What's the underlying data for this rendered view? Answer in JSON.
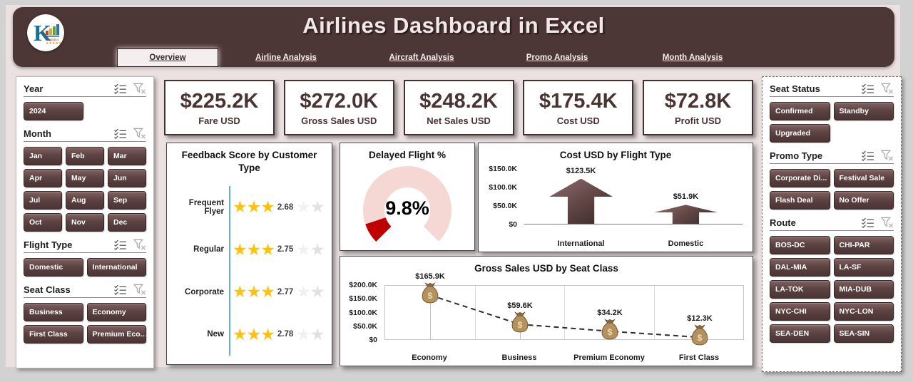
{
  "window": {
    "title": "Airlines Dashboard in Excel"
  },
  "tabs": [
    {
      "label": "Overview",
      "active": true
    },
    {
      "label": "Airline Analysis",
      "active": false
    },
    {
      "label": "Aircraft Analysis",
      "active": false
    },
    {
      "label": "Promo Analysis",
      "active": false
    },
    {
      "label": "Month Analysis",
      "active": false
    }
  ],
  "kpis": [
    {
      "value": "$225.2K",
      "label": "Fare USD"
    },
    {
      "value": "$272.0K",
      "label": "Gross Sales USD"
    },
    {
      "value": "$248.2K",
      "label": "Net Sales USD"
    },
    {
      "value": "$175.4K",
      "label": "Cost USD"
    },
    {
      "value": "$72.8K",
      "label": "Profit USD"
    }
  ],
  "left_sidebar": {
    "slicers": [
      {
        "title": "Year",
        "columns": 2,
        "items": [
          "2024"
        ]
      },
      {
        "title": "Month",
        "columns": 3,
        "items": [
          "Jan",
          "Feb",
          "Mar",
          "Apr",
          "May",
          "Jun",
          "Jul",
          "Aug",
          "Sep",
          "Oct",
          "Nov",
          "Dec"
        ]
      },
      {
        "title": "Flight Type",
        "columns": 2,
        "items": [
          "Domestic",
          "International"
        ]
      },
      {
        "title": "Seat Class",
        "columns": 2,
        "items": [
          "Business",
          "Economy",
          "First Class",
          "Premium Eco..."
        ]
      }
    ]
  },
  "right_sidebar": {
    "slicers": [
      {
        "title": "Seat Status",
        "columns": 2,
        "items": [
          "Confirmed",
          "Standby",
          "Upgraded"
        ]
      },
      {
        "title": "Promo Type",
        "columns": 2,
        "items": [
          "Corporate Di...",
          "Festival Sale",
          "Flash Deal",
          "No Offer"
        ]
      },
      {
        "title": "Route",
        "columns": 2,
        "items": [
          "BOS-DC",
          "CHI-PAR",
          "DAL-MIA",
          "LA-SF",
          "LA-TOK",
          "MIA-DUB",
          "NYC-CHI",
          "NYC-LON",
          "SEA-DEN",
          "SEA-SIN"
        ]
      }
    ]
  },
  "chart_data": [
    {
      "type": "bar",
      "title": "Feedback Score by Customer Type",
      "orientation": "horizontal",
      "marker": "star-rating",
      "max_stars": 5,
      "categories": [
        "Frequent Flyer",
        "Regular",
        "Corporate",
        "New"
      ],
      "values": [
        2.68,
        2.75,
        2.77,
        2.78
      ],
      "labels": [
        "2.68",
        "2.75",
        "2.77",
        "2.78"
      ]
    },
    {
      "type": "pie",
      "title": "Delayed Flight %",
      "display": "gauge",
      "value": 9.8,
      "unit": "%",
      "label": "9.8%",
      "sweep_degrees": 270,
      "colors": {
        "value": "#c00000",
        "track": "#f5d8d3"
      }
    },
    {
      "type": "bar",
      "title": "Cost USD by Flight Type",
      "marker": "up-arrow",
      "categories": [
        "International",
        "Domestic"
      ],
      "values": [
        123.5,
        51.9
      ],
      "labels": [
        "$123.5K",
        "$51.9K"
      ],
      "ylim": [
        0,
        150
      ],
      "yticks": [
        150,
        100,
        50,
        0
      ],
      "ytick_labels": [
        "$150.0K",
        "$100.0K",
        "$50.0K",
        "$0"
      ],
      "centers_pct": [
        26,
        74
      ]
    },
    {
      "type": "line",
      "title": "Gross Sales USD by Seat Class",
      "line_style": "dashed",
      "marker": "money-bag",
      "categories": [
        "Economy",
        "Business",
        "Premium Economy",
        "First Class"
      ],
      "values": [
        165.9,
        59.6,
        34.2,
        12.3
      ],
      "labels": [
        "$165.9K",
        "$59.6K",
        "$34.2K",
        "$12.3K"
      ],
      "ylim": [
        0,
        200
      ],
      "yticks": [
        200,
        150,
        100,
        50,
        0
      ],
      "ytick_labels": [
        "$200.0K",
        "$150.0K",
        "$100.0K",
        "$50.0K",
        "$0"
      ],
      "grid": "vertical"
    }
  ],
  "colors": {
    "header_brown": "#4d3636",
    "slicer_brown": "#5e4343",
    "kpi_text": "#4a3333",
    "star_gold": "#fdc10e",
    "star_axis_blue": "#5fb0d6",
    "gauge_red": "#c00000",
    "gauge_track": "#f5d8d3",
    "arrow_brown": "#5e4343"
  }
}
